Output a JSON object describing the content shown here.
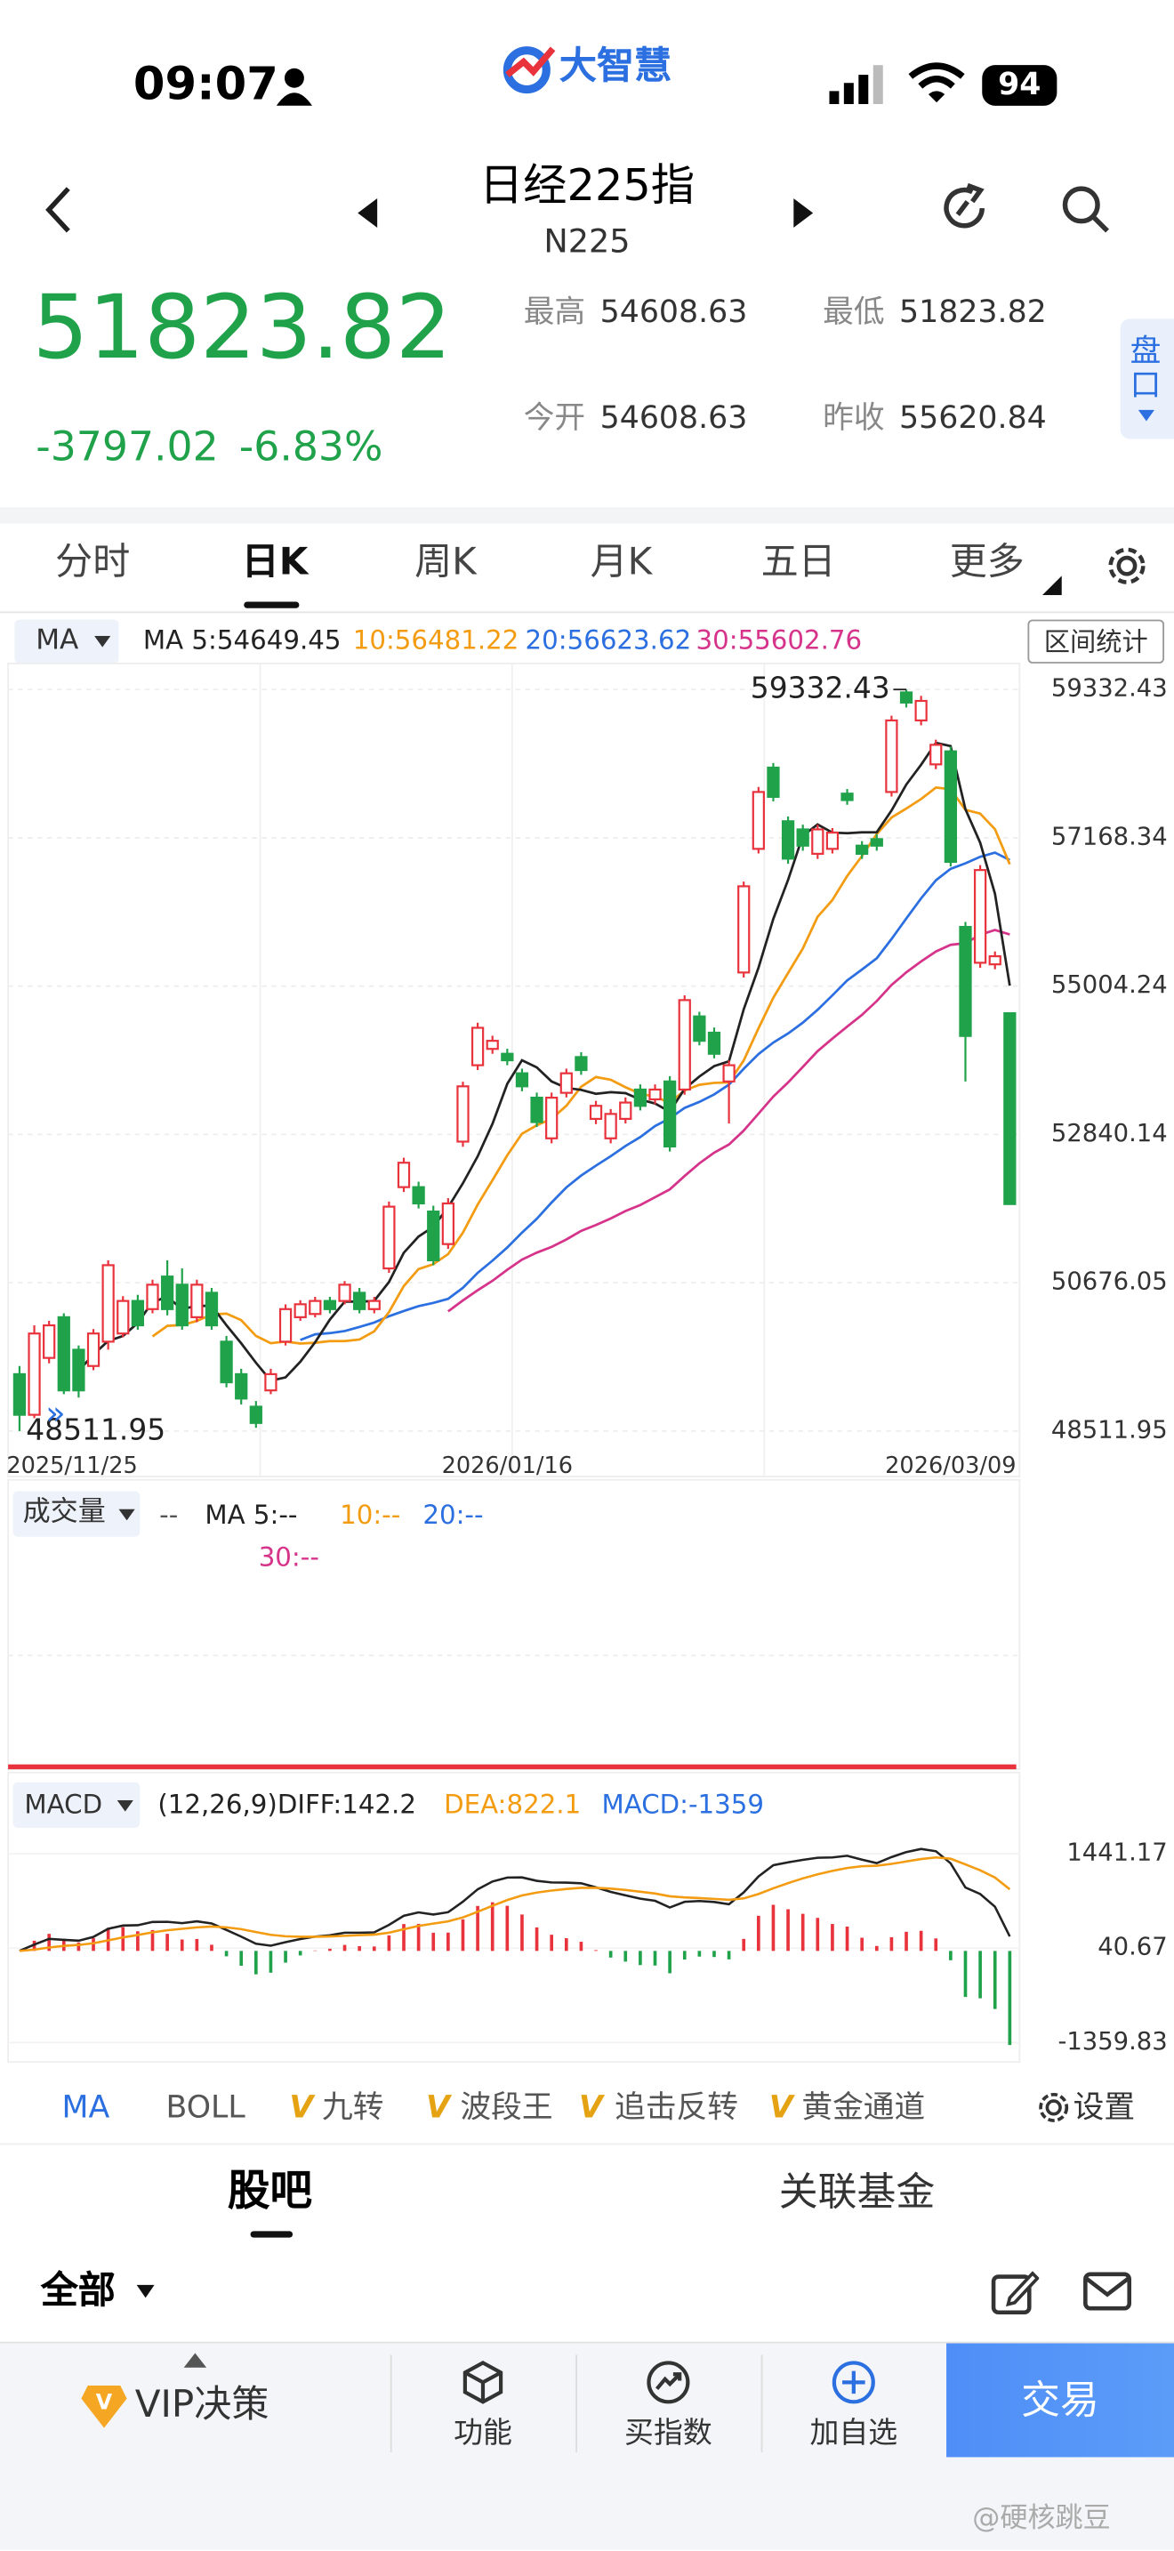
{
  "status": {
    "time": "09:07",
    "logo": "大智慧",
    "battery": "94"
  },
  "header": {
    "title": "日经225指",
    "code": "N225"
  },
  "quote": {
    "price": "51823.82",
    "change": "-3797.02",
    "pct": "-6.83%",
    "high_label": "最高",
    "high": "54608.63",
    "low_label": "最低",
    "low": "51823.82",
    "open_label": "今开",
    "open": "54608.63",
    "prev_label": "昨收",
    "prev": "55620.84",
    "side": "盘口"
  },
  "tabs": [
    "分时",
    "日K",
    "周K",
    "月K",
    "五日",
    "更多"
  ],
  "ma_header": {
    "button": "MA",
    "ma5": "MA 5:54649.45",
    "ma10": "10:56481.22",
    "ma20": "20:56623.62",
    "ma30": "30:55602.76",
    "stats": "区间统计"
  },
  "chart_data": {
    "type": "candlestick",
    "up_color": "#e8323c",
    "down_color": "#1fa24a",
    "ylim": [
      48511.95,
      59332.43
    ],
    "yticks": [
      59332.43,
      57168.34,
      55004.24,
      52840.14,
      50676.05,
      48511.95
    ],
    "grid": true,
    "categories": [
      "2025/11/25",
      null,
      null,
      null,
      null,
      null,
      null,
      null,
      null,
      null,
      null,
      null,
      null,
      null,
      null,
      null,
      null,
      null,
      null,
      null,
      null,
      null,
      null,
      null,
      null,
      null,
      null,
      null,
      null,
      null,
      null,
      null,
      null,
      "2026/01/16",
      null,
      null,
      null,
      null,
      null,
      null,
      null,
      null,
      null,
      null,
      null,
      null,
      null,
      null,
      null,
      null,
      null,
      null,
      null,
      null,
      null,
      null,
      null,
      null,
      null,
      null,
      null,
      null,
      null,
      "2026/03/09",
      null,
      null,
      null,
      null
    ],
    "open": [
      49342,
      48749,
      49579,
      50173,
      49698,
      49461,
      49816,
      49935,
      50410,
      50291,
      50766,
      50647,
      50173,
      50529,
      49816,
      49342,
      48867,
      49105,
      49816,
      50173,
      50220,
      50410,
      50410,
      50529,
      50291,
      50885,
      52071,
      52071,
      51715,
      51240,
      52735,
      53850,
      54088,
      54017,
      53732,
      53376,
      52783,
      53447,
      53969,
      53067,
      52783,
      53067,
      53495,
      53352,
      53613,
      53495,
      54562,
      54325,
      53613,
      55203,
      57007,
      58193,
      57410,
      57291,
      56935,
      57007,
      57813,
      57054,
      57149,
      57837,
      59290,
      58881,
      58240,
      58430,
      55868,
      55345,
      55322,
      54608.63
    ],
    "close": [
      48749,
      49935,
      50054,
      49105,
      49105,
      49935,
      50932,
      50410,
      50054,
      50647,
      50291,
      50054,
      50647,
      50054,
      49223,
      48986,
      48630,
      49342,
      50291,
      50362,
      50410,
      50291,
      50647,
      50291,
      50410,
      51786,
      52427,
      51833,
      51003,
      51833,
      53542,
      54396,
      54206,
      53922,
      53542,
      53020,
      53376,
      53732,
      53779,
      53257,
      53139,
      53305,
      53257,
      53495,
      52664,
      54800,
      54206,
      54017,
      53850,
      56461,
      57837,
      57766,
      56864,
      57054,
      57291,
      57244,
      57719,
      56935,
      57054,
      58881,
      59142,
      59166,
      58525,
      56817,
      54277,
      56698,
      55440,
      51823.82
    ],
    "high": [
      49461,
      50054,
      50120,
      50230,
      49760,
      50000,
      51003,
      50480,
      50500,
      50720,
      51003,
      50885,
      50720,
      50600,
      49900,
      49420,
      48950,
      49420,
      50360,
      50420,
      50470,
      50470,
      50700,
      50600,
      50470,
      51860,
      52500,
      52150,
      51800,
      51910,
      53610,
      54470,
      54280,
      54090,
      53800,
      53450,
      53450,
      53800,
      54040,
      53330,
      53210,
      53380,
      53570,
      53570,
      53690,
      54870,
      54630,
      54400,
      53920,
      56530,
      57910,
      58260,
      57480,
      57360,
      57360,
      57310,
      57880,
      57120,
      57220,
      58950,
      59332.43,
      59240,
      58600,
      58500,
      55940,
      56770,
      55510,
      54608.63
    ],
    "low": [
      48511.95,
      48700,
      49500,
      49050,
      49000,
      49400,
      49700,
      49880,
      49990,
      50230,
      50200,
      49990,
      50100,
      49990,
      49150,
      48900,
      48559,
      49050,
      49760,
      50120,
      50170,
      50230,
      50360,
      50230,
      50230,
      50820,
      52000,
      51760,
      50930,
      51170,
      52660,
      53780,
      54017,
      53850,
      53470,
      52950,
      52710,
      53380,
      53710,
      52990,
      52710,
      53000,
      53190,
      53280,
      52590,
      53420,
      54140,
      53950,
      53000,
      55130,
      56940,
      57700,
      56790,
      56980,
      56860,
      56940,
      57650,
      56860,
      56980,
      57770,
      59070,
      58810,
      58170,
      56750,
      53613,
      55270,
      55250,
      51823.82
    ]
  },
  "volume": {
    "button": "成交量",
    "dash": "--",
    "ma5": "MA 5:--",
    "ma10": "10:--",
    "ma20": "20:--",
    "ma30": "30:--"
  },
  "macd": {
    "button": "MACD",
    "diff": "(12,26,9)DIFF:142.2",
    "dea": "DEA:822.1",
    "macd": "MACD:-1359",
    "ylim": [
      -1359.83,
      1441.17
    ],
    "yticks": [
      1441.17,
      40.67,
      -1359.83
    ]
  },
  "indicator_tabs": {
    "ma": "MA",
    "boll": "BOLL",
    "v": "V",
    "jiuzhuan": "九转",
    "boduan": "波段王",
    "zhuiji": "追击反转",
    "huangjin": "黄金通道",
    "settings": "设置"
  },
  "section_tabs": [
    "股吧",
    "关联基金"
  ],
  "filter": "全部",
  "bottom_bar": {
    "vip": "VIP决策",
    "func": "功能",
    "buy": "买指数",
    "add": "加自选",
    "trade": "交易"
  },
  "watermark": "@硬核跳豆"
}
